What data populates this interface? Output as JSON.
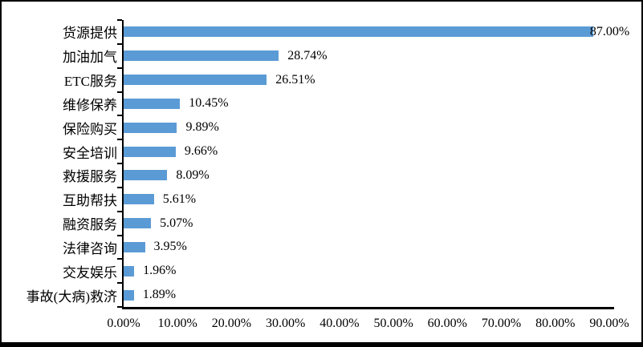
{
  "chart_data": {
    "type": "bar",
    "orientation": "horizontal",
    "title": "",
    "xlabel": "",
    "ylabel": "",
    "grid": false,
    "legend": false,
    "bar_color": "#5B9BD5",
    "axis_color": "#000000",
    "background_color": "#FFFFFF",
    "xlim": [
      0,
      90
    ],
    "x_tick_step": 10,
    "categories": [
      "货源提供",
      "加油加气",
      "ETC服务",
      "维修保养",
      "保险购买",
      "安全培训",
      "救援服务",
      "互助帮扶",
      "融资服务",
      "法律咨询",
      "交友娱乐",
      "事故(大病)救济"
    ],
    "values": [
      87.0,
      28.74,
      26.51,
      10.45,
      9.89,
      9.66,
      8.09,
      5.61,
      5.07,
      3.95,
      1.96,
      1.89
    ],
    "value_labels": [
      "87.00%",
      "28.74%",
      "26.51%",
      "10.45%",
      "9.89%",
      "9.66%",
      "8.09%",
      "5.61%",
      "5.07%",
      "3.95%",
      "1.96%",
      "1.89%"
    ],
    "x_tick_labels": [
      "0.00%",
      "10.00%",
      "20.00%",
      "30.00%",
      "40.00%",
      "50.00%",
      "60.00%",
      "70.00%",
      "80.00%",
      "90.00%"
    ]
  }
}
